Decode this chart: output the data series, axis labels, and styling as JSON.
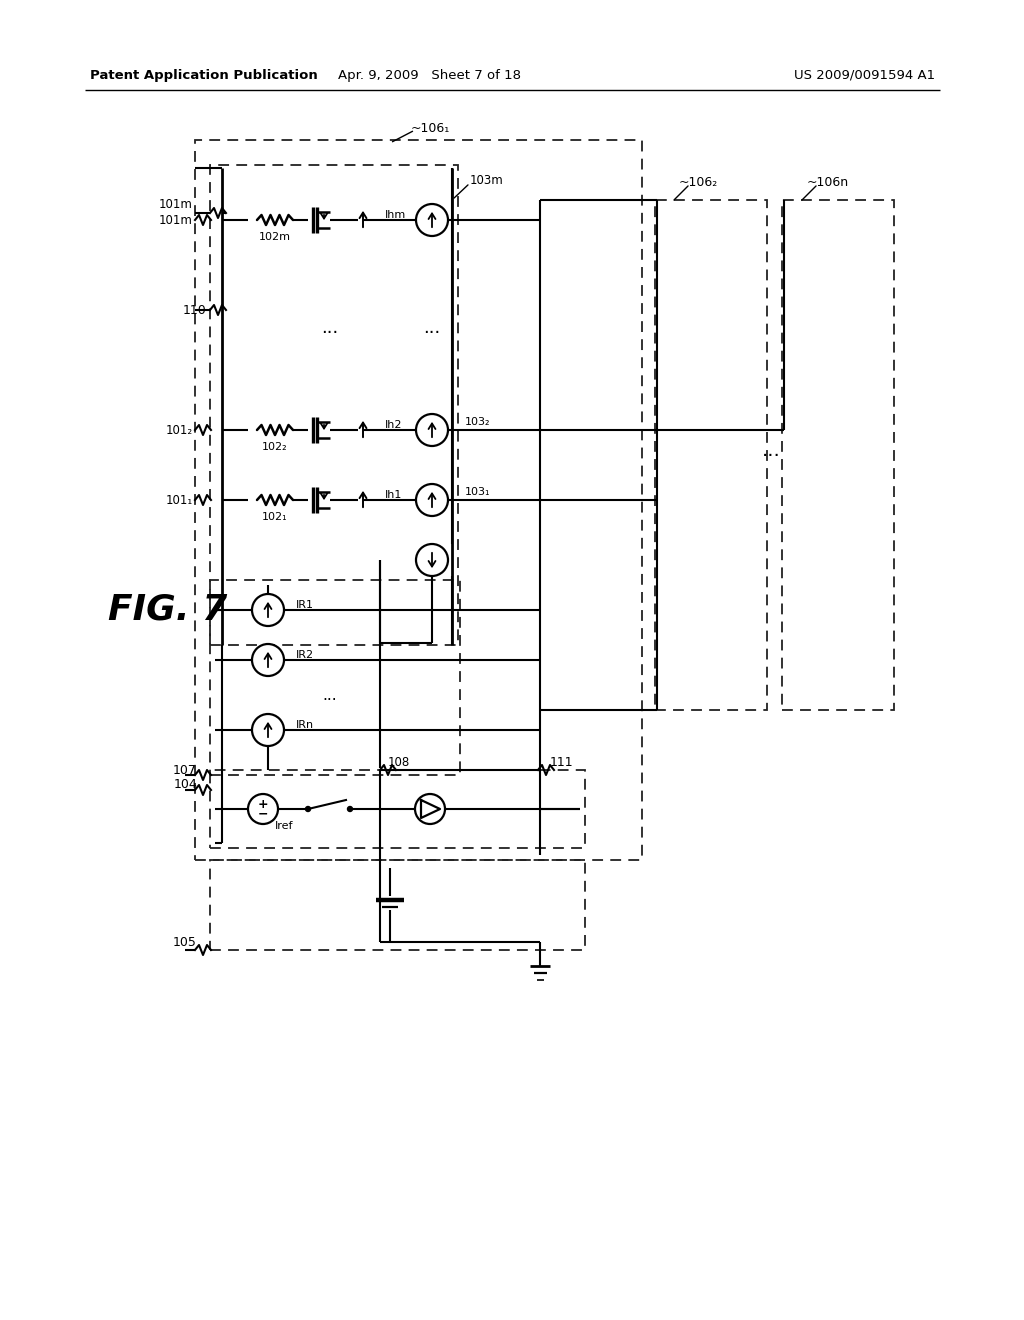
{
  "bg": "#ffffff",
  "header_left": "Patent Application Publication",
  "header_mid": "Apr. 9, 2009   Sheet 7 of 18",
  "header_right": "US 2009/0091594 A1",
  "fig_label": "FIG. 7",
  "label_101m": "101m",
  "label_110": "110",
  "label_103m": "103m",
  "label_107": "107",
  "label_104": "104",
  "label_105": "105",
  "label_108": "108",
  "label_111": "111",
  "label_1061": "~106₁",
  "label_1062": "~106₂",
  "label_106n": "~106n",
  "label_1011": "101₁",
  "label_1012": "101₂",
  "label_1031": "103₁",
  "label_1032": "103₂",
  "label_1021": "102₁",
  "label_1022": "102₂",
  "label_102m": "102m",
  "label_Ih1": "Ih1",
  "label_Ih2": "Ih2",
  "label_Ihm": "Ihm",
  "label_IR1": "IR1",
  "label_IR2": "IR2",
  "label_IRn": "IRn",
  "label_Iref": "Iref"
}
